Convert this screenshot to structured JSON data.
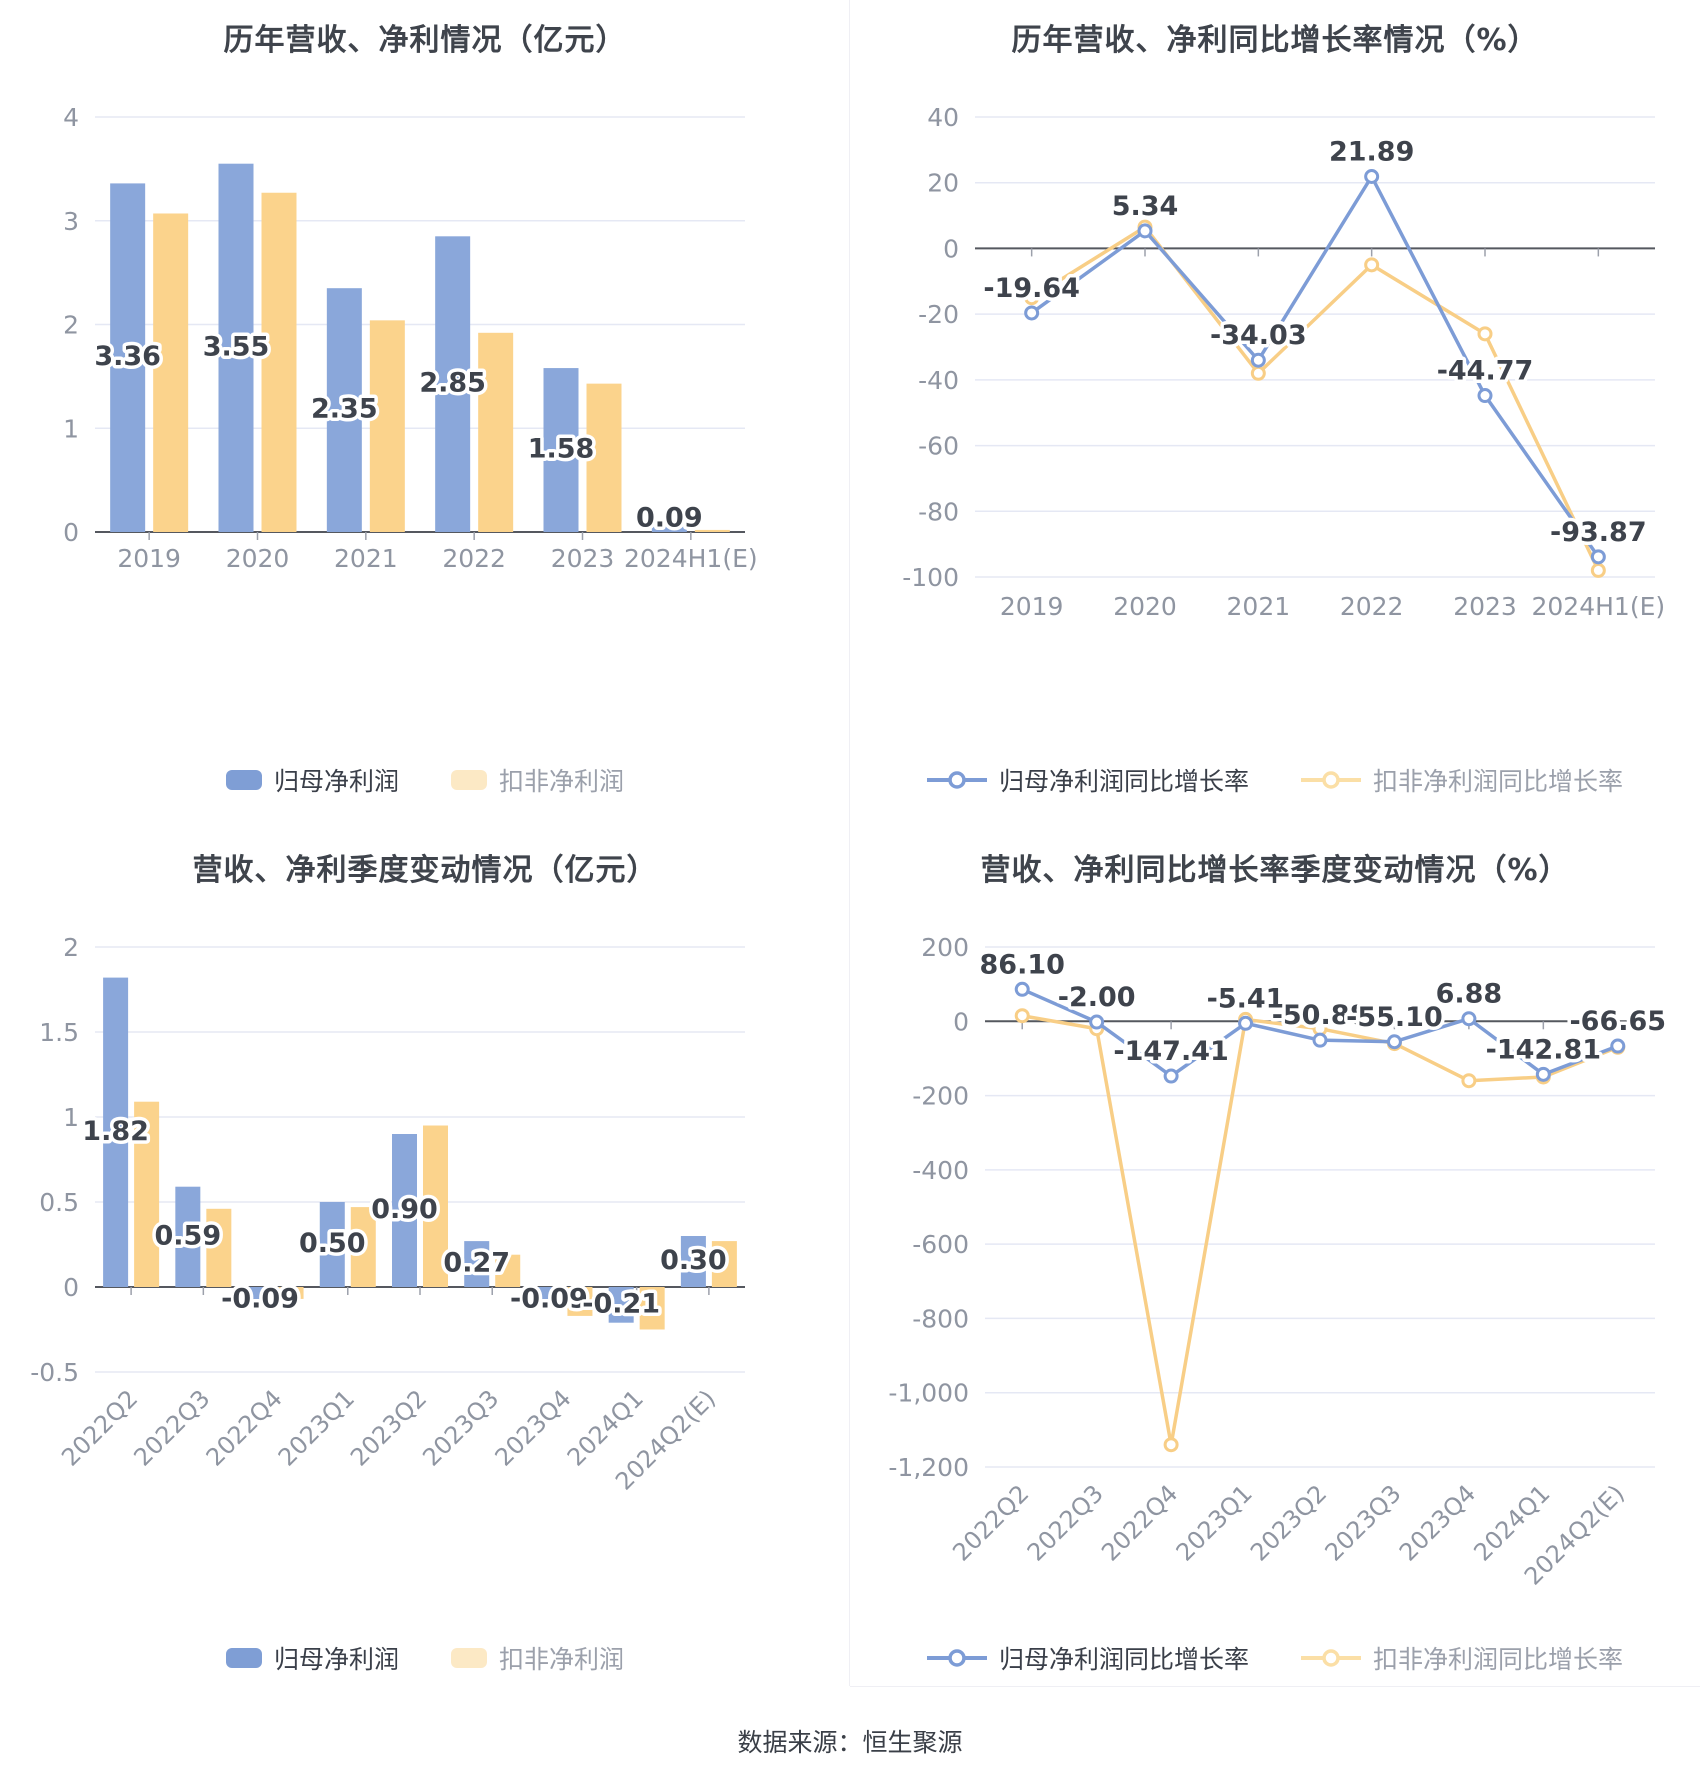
{
  "page": {
    "footer": "数据来源：恒生聚源",
    "background": "#ffffff"
  },
  "colors": {
    "bar_blue": "#8AA7DA",
    "bar_yellow": "#FBD38C",
    "line_blue": "#7D9CD6",
    "line_yellow": "#F8CE86",
    "legend_blue": "#7F9ED5",
    "legend_yellow_pale": "#FCE9C5",
    "legend_line_yellow": "#FBDFA6",
    "grid": "#E5E8F4",
    "zero_line": "#55585F",
    "axis_tick": "#9CA0AB",
    "tick_label": "#8F95A1",
    "data_label": "#3E434C",
    "title": "#3F444C"
  },
  "chart_data": [
    {
      "type": "bar",
      "title": "历年营收、净利情况（亿元）",
      "categories": [
        "2019",
        "2020",
        "2021",
        "2022",
        "2023",
        "2024H1(E)"
      ],
      "ylim": [
        0,
        4
      ],
      "yticks": [
        {
          "v": 4,
          "label": "4"
        },
        {
          "v": 3,
          "label": "3"
        },
        {
          "v": 2,
          "label": "2"
        },
        {
          "v": 1,
          "label": "1"
        },
        {
          "v": 0,
          "label": "0"
        }
      ],
      "grid": true,
      "legend_position": "bottom",
      "series": [
        {
          "name": "归母净利润",
          "color": "#8AA7DA",
          "legend_color": "#7F9ED5",
          "values": [
            3.36,
            3.55,
            2.35,
            2.85,
            1.58,
            0.09
          ],
          "labels": [
            "3.36",
            "3.55",
            "2.35",
            "2.85",
            "1.58",
            "0.09"
          ]
        },
        {
          "name": "扣非净利润",
          "color": "#FBD38C",
          "legend_color": "#FCE9C5",
          "values": [
            3.07,
            3.27,
            2.04,
            1.92,
            1.43,
            0.02
          ]
        }
      ]
    },
    {
      "type": "line",
      "title": "历年营收、净利同比增长率情况（%）",
      "categories": [
        "2019",
        "2020",
        "2021",
        "2022",
        "2023",
        "2024H1(E)"
      ],
      "ylim": [
        -100,
        40
      ],
      "yticks": [
        {
          "v": 40,
          "label": "40"
        },
        {
          "v": 20,
          "label": "20"
        },
        {
          "v": 0,
          "label": "0"
        },
        {
          "v": -20,
          "label": "-20"
        },
        {
          "v": -40,
          "label": "-40"
        },
        {
          "v": -60,
          "label": "-60"
        },
        {
          "v": -80,
          "label": "-80"
        },
        {
          "v": -100,
          "label": "-100"
        }
      ],
      "grid": true,
      "legend_position": "bottom",
      "series": [
        {
          "name": "归母净利润同比增长率",
          "color": "#7D9CD6",
          "legend_color": "#7D9CD6",
          "values": [
            -19.64,
            5.34,
            -34.03,
            21.89,
            -44.77,
            -93.87
          ],
          "labels": [
            "-19.64",
            "5.34",
            "-34.03",
            "21.89",
            "-44.77",
            "-93.87"
          ]
        },
        {
          "name": "扣非净利润同比增长率",
          "color": "#F8CE86",
          "legend_color": "#FBDFA6",
          "values": [
            -15,
            6.5,
            -38,
            -5,
            -26,
            -98
          ]
        }
      ]
    },
    {
      "type": "bar",
      "title": "营收、净利季度变动情况（亿元）",
      "categories": [
        "2022Q2",
        "2022Q3",
        "2022Q4",
        "2023Q1",
        "2023Q2",
        "2023Q3",
        "2023Q4",
        "2024Q1",
        "2024Q2(E)"
      ],
      "ylim": [
        -0.5,
        2
      ],
      "yticks": [
        {
          "v": 2,
          "label": "2"
        },
        {
          "v": 1.5,
          "label": "1.5"
        },
        {
          "v": 1,
          "label": "1"
        },
        {
          "v": 0.5,
          "label": "0.5"
        },
        {
          "v": 0,
          "label": "0"
        },
        {
          "v": -0.5,
          "label": "-0.5"
        }
      ],
      "grid": true,
      "rotate_x_labels": true,
      "legend_position": "bottom",
      "series": [
        {
          "name": "归母净利润",
          "color": "#8AA7DA",
          "legend_color": "#7F9ED5",
          "values": [
            1.82,
            0.59,
            -0.09,
            0.5,
            0.9,
            0.27,
            -0.09,
            -0.21,
            0.3
          ],
          "labels": [
            "1.82",
            "0.59",
            "-0.09",
            "0.50",
            "0.90",
            "0.27",
            "-0.09",
            "-0.21",
            "0.30"
          ]
        },
        {
          "name": "扣非净利润",
          "color": "#FBD38C",
          "legend_color": "#FCE9C5",
          "values": [
            1.09,
            0.46,
            -0.07,
            0.47,
            0.95,
            0.19,
            -0.17,
            -0.25,
            0.27
          ]
        }
      ]
    },
    {
      "type": "line",
      "title": "营收、净利同比增长率季度变动情况（%）",
      "categories": [
        "2022Q2",
        "2022Q3",
        "2022Q4",
        "2023Q1",
        "2023Q2",
        "2023Q3",
        "2023Q4",
        "2024Q1",
        "2024Q2(E)"
      ],
      "ylim": [
        -1200,
        200
      ],
      "yticks": [
        {
          "v": 200,
          "label": "200"
        },
        {
          "v": 0,
          "label": "0"
        },
        {
          "v": -200,
          "label": "-200"
        },
        {
          "v": -400,
          "label": "-400"
        },
        {
          "v": -600,
          "label": "-600"
        },
        {
          "v": -800,
          "label": "-800"
        },
        {
          "v": -1000,
          "label": "-1,000"
        },
        {
          "v": -1200,
          "label": "-1,200"
        }
      ],
      "grid": true,
      "rotate_x_labels": true,
      "legend_position": "bottom",
      "series": [
        {
          "name": "归母净利润同比增长率",
          "color": "#7D9CD6",
          "legend_color": "#7D9CD6",
          "values": [
            86.1,
            -2.0,
            -147.41,
            -5.41,
            -50.88,
            -55.1,
            6.88,
            -142.81,
            -66.65
          ],
          "labels": [
            "86.10",
            "-2.00",
            "-147.41",
            "-5.41",
            "-50.88",
            "-55.10",
            "6.88",
            "-142.81",
            "-66.65"
          ]
        },
        {
          "name": "扣非净利润同比增长率",
          "color": "#F8CE86",
          "legend_color": "#FBDFA6",
          "values": [
            15,
            -20,
            -1140,
            5,
            -20,
            -60,
            -160,
            -150,
            -70
          ]
        }
      ]
    }
  ]
}
